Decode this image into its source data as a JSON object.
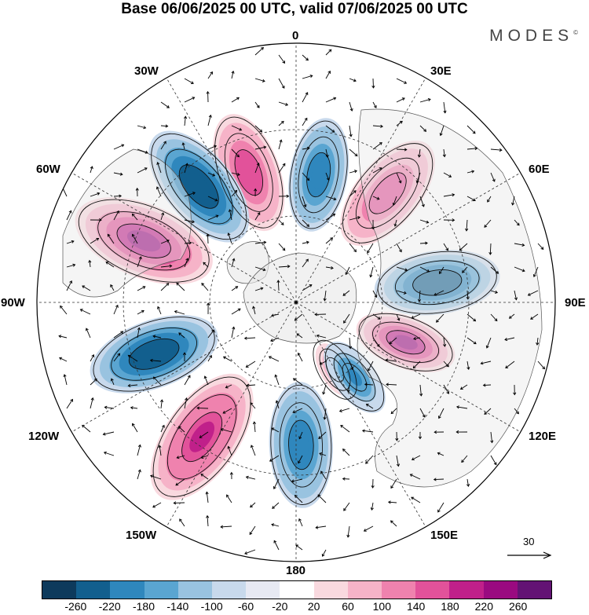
{
  "title": "Base 06/06/2025 00 UTC, valid 07/06/2025 00 UTC",
  "brand": {
    "name": "MODES",
    "mark": "©"
  },
  "longitude_labels": {
    "lon_0": "0",
    "lon_30e": "30E",
    "lon_60e": "60E",
    "lon_90e": "90E",
    "lon_120e": "120E",
    "lon_150e": "150E",
    "lon_180": "180",
    "lon_150w": "150W",
    "lon_120w": "120W",
    "lon_90w": "90W",
    "lon_60w": "60W",
    "lon_30w": "30W"
  },
  "reference_vector": {
    "value": "30"
  },
  "colorbar": {
    "colors": [
      "#0d3a5c",
      "#125f8e",
      "#2f87bd",
      "#5aa5d1",
      "#99c3e0",
      "#c8d9ec",
      "#e7e9f3",
      "#ffffff",
      "#f9d9df",
      "#f6b3c8",
      "#ef82ae",
      "#e2529a",
      "#c0208a",
      "#9a0a80",
      "#631374"
    ],
    "tick_labels": [
      "-260",
      "-220",
      "-180",
      "-140",
      "-100",
      "-60",
      "-20",
      "20",
      "60",
      "100",
      "140",
      "180",
      "220",
      "260"
    ]
  },
  "anomaly_centers": [
    {
      "lon": 10,
      "colat": 30,
      "value": -200
    },
    {
      "lon": -20,
      "colat": 32,
      "value": 200
    },
    {
      "lon": -40,
      "colat": 35,
      "value": -240
    },
    {
      "lon": -68,
      "colat": 38,
      "value": 260
    },
    {
      "lon": -110,
      "colat": 35,
      "value": -240
    },
    {
      "lon": -145,
      "colat": 38,
      "value": 230
    },
    {
      "lon": 178,
      "colat": 33,
      "value": -200
    },
    {
      "lon": 150,
      "colat": 18,
      "value": 120
    },
    {
      "lon": 142,
      "colat": 22,
      "value": -180
    },
    {
      "lon": 110,
      "colat": 27,
      "value": 270
    },
    {
      "lon": 82,
      "colat": 33,
      "value": -240
    },
    {
      "lon": 40,
      "colat": 33,
      "value": 200
    }
  ]
}
